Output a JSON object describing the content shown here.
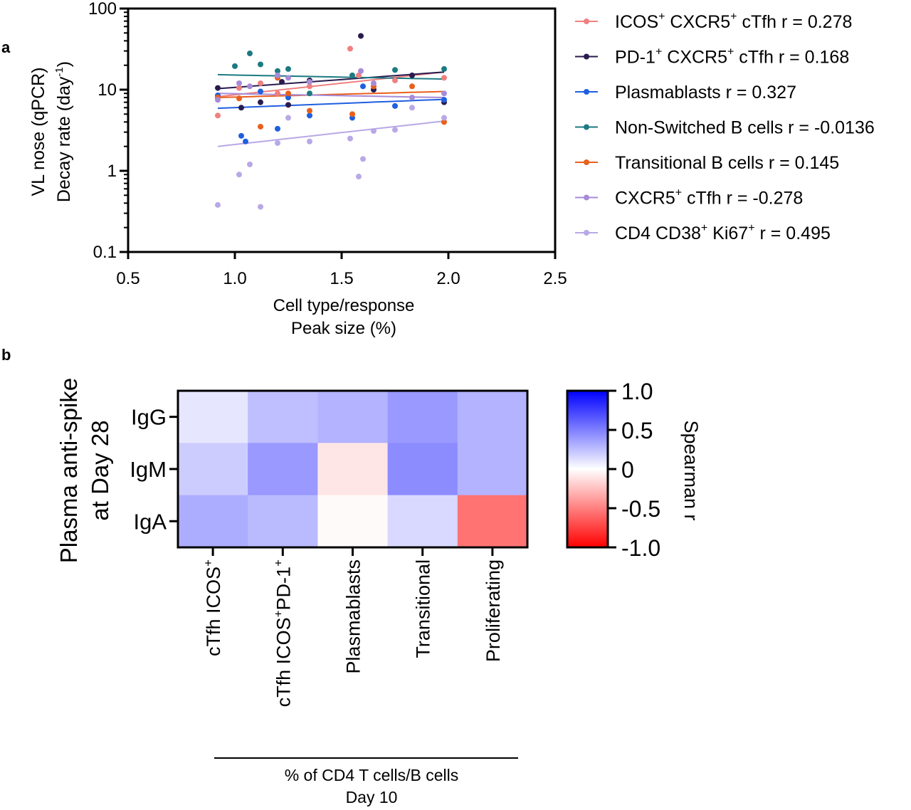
{
  "panel_a": {
    "label": "a",
    "ylabel_line1": "VL nose (qPCR)",
    "ylabel_line2_main": "Decay rate (day",
    "ylabel_line2_sup": "-1",
    "ylabel_line2_end": ")",
    "xlabel_line1": "Cell type/response",
    "xlabel_line2": "Peak size (%)"
  },
  "panel_b": {
    "label": "b",
    "ylabel_line1": "Plasma anti-spike",
    "ylabel_line2": "at Day 28",
    "xlabel_line1": "% of CD4 T cells/B cells",
    "xlabel_line2": "Day 10",
    "colorbar_label": "Spearman r",
    "colorbar_ticks": [
      "1.0",
      "0.5",
      "0",
      "-0.5",
      "-1.0"
    ],
    "col_labels": [
      {
        "main": "cTfh ICOS",
        "sup1": "+",
        "mid": "",
        "sup2": ""
      },
      {
        "main": "cTfh ICOS",
        "sup1": "+",
        "mid": "PD-1",
        "sup2": "+"
      },
      {
        "main": "Plasmablasts",
        "sup1": "",
        "mid": "",
        "sup2": ""
      },
      {
        "main": "Transitional",
        "sup1": "",
        "mid": "",
        "sup2": ""
      },
      {
        "main": "Proliferating",
        "sup1": "",
        "mid": "",
        "sup2": ""
      }
    ]
  },
  "legend": [
    {
      "parts": [
        "ICOS",
        "+",
        " CXCR5",
        "+",
        " cTfh r = 0.278"
      ]
    },
    {
      "parts": [
        "PD-1",
        "+",
        " CXCR5",
        "+",
        " cTfh r = 0.168"
      ]
    },
    {
      "parts": [
        "Plasmablasts r = 0.327"
      ]
    },
    {
      "parts": [
        "Non-Switched B cells r = -0.0136"
      ]
    },
    {
      "parts": [
        "Transitional B cells r = 0.145"
      ]
    },
    {
      "parts": [
        "CXCR5",
        "+",
        " cTfh r = -0.278"
      ]
    },
    {
      "parts": [
        "CD4 CD38",
        "+",
        " Ki67",
        "+",
        " r = 0.495"
      ]
    }
  ],
  "chart_data": [
    {
      "type": "scatter",
      "xlabel": "Cell type/response Peak size (%)",
      "ylabel": "VL nose (qPCR) Decay rate (day-1)",
      "xlim": [
        0.5,
        2.5
      ],
      "ylim": [
        0.1,
        100
      ],
      "y_scale": "log",
      "x_ticks": [
        "0.5",
        "1.0",
        "1.5",
        "2.0",
        "2.5"
      ],
      "y_ticks": [
        "0.1",
        "1",
        "10",
        "100"
      ],
      "legend_position": "right",
      "grid": false,
      "series": [
        {
          "name": "ICOS+ CXCR5+ cTfh r = 0.278",
          "color": "#f08080",
          "points": [
            [
              0.92,
              4.8
            ],
            [
              1.02,
              10.5
            ],
            [
              1.12,
              12
            ],
            [
              1.2,
              9
            ],
            [
              1.35,
              11
            ],
            [
              1.54,
              32
            ],
            [
              1.58,
              15
            ],
            [
              1.75,
              13
            ],
            [
              1.98,
              14
            ]
          ],
          "fit": [
            [
              0.92,
              8.2
            ],
            [
              1.98,
              16.5
            ]
          ]
        },
        {
          "name": "PD-1+ CXCR5+ cTfh r = 0.168",
          "color": "#2a1b4e",
          "points": [
            [
              0.92,
              10.5
            ],
            [
              1.03,
              6
            ],
            [
              1.12,
              7
            ],
            [
              1.22,
              12.5
            ],
            [
              1.25,
              6.5
            ],
            [
              1.35,
              13
            ],
            [
              1.59,
              46
            ],
            [
              1.65,
              10
            ],
            [
              1.83,
              15
            ],
            [
              1.98,
              7
            ]
          ],
          "fit": [
            [
              0.92,
              10.3
            ],
            [
              1.98,
              16.5
            ]
          ]
        },
        {
          "name": "Plasmablasts r = 0.327",
          "color": "#1f5fe0",
          "points": [
            [
              0.92,
              8.5
            ],
            [
              1.03,
              2.7
            ],
            [
              1.05,
              2.3
            ],
            [
              1.12,
              9.5
            ],
            [
              1.2,
              3.3
            ],
            [
              1.25,
              8
            ],
            [
              1.35,
              4.8
            ],
            [
              1.55,
              4.5
            ],
            [
              1.6,
              11
            ],
            [
              1.75,
              6.3
            ],
            [
              1.98,
              7.5
            ]
          ],
          "fit": [
            [
              0.92,
              5.9
            ],
            [
              1.98,
              7.6
            ]
          ]
        },
        {
          "name": "Non-Switched B cells r = -0.0136",
          "color": "#1c7a80",
          "points": [
            [
              0.92,
              8
            ],
            [
              1.0,
              19.5
            ],
            [
              1.07,
              28
            ],
            [
              1.12,
              20.5
            ],
            [
              1.2,
              17
            ],
            [
              1.25,
              18
            ],
            [
              1.35,
              9
            ],
            [
              1.55,
              15
            ],
            [
              1.75,
              17.5
            ],
            [
              1.98,
              18
            ]
          ],
          "fit": [
            [
              0.92,
              15.3
            ],
            [
              1.98,
              13.5
            ]
          ]
        },
        {
          "name": "Transitional B cells r = 0.145",
          "color": "#e8601c",
          "points": [
            [
              0.92,
              8
            ],
            [
              1.02,
              7.8
            ],
            [
              1.12,
              3.5
            ],
            [
              1.2,
              14
            ],
            [
              1.25,
              9
            ],
            [
              1.35,
              5.5
            ],
            [
              1.55,
              5
            ],
            [
              1.65,
              11
            ],
            [
              1.83,
              11
            ],
            [
              1.98,
              4
            ]
          ],
          "fit": [
            [
              0.92,
              8
            ],
            [
              1.98,
              9.5
            ]
          ]
        },
        {
          "name": "CXCR5+ cTfh r = -0.278",
          "color": "#a78bd8",
          "points": [
            [
              0.92,
              7.5
            ],
            [
              1.02,
              12
            ],
            [
              1.07,
              11
            ],
            [
              1.2,
              15
            ],
            [
              1.25,
              14
            ],
            [
              1.35,
              12.5
            ],
            [
              1.59,
              17
            ],
            [
              1.65,
              12
            ],
            [
              1.83,
              8
            ],
            [
              1.98,
              9
            ]
          ],
          "fit": [
            [
              0.92,
              9
            ],
            [
              1.98,
              8
            ]
          ]
        },
        {
          "name": "CD4 CD38+ Ki67+ r = 0.495",
          "color": "#b9a8e6",
          "points": [
            [
              0.92,
              0.38
            ],
            [
              1.02,
              0.9
            ],
            [
              1.07,
              1.2
            ],
            [
              1.12,
              0.36
            ],
            [
              1.2,
              2.2
            ],
            [
              1.25,
              4.5
            ],
            [
              1.35,
              2.3
            ],
            [
              1.54,
              2.5
            ],
            [
              1.58,
              0.85
            ],
            [
              1.6,
              1.4
            ],
            [
              1.65,
              3.1
            ],
            [
              1.75,
              3.2
            ],
            [
              1.83,
              6
            ],
            [
              1.98,
              4.5
            ]
          ],
          "fit": [
            [
              0.92,
              2.0
            ],
            [
              1.98,
              4.1
            ]
          ]
        }
      ]
    },
    {
      "type": "heatmap",
      "ylabel": "Plasma anti-spike at Day 28",
      "xlabel": "% of CD4 T cells/B cells Day 10",
      "rows": [
        "IgG",
        "IgM",
        "IgA"
      ],
      "columns": [
        "cTfh ICOS+",
        "cTfh ICOS+PD-1+",
        "Plasmablasts",
        "Transitional",
        "Proliferating"
      ],
      "values": [
        [
          0.1,
          0.25,
          0.3,
          0.4,
          0.3
        ],
        [
          0.2,
          0.4,
          -0.1,
          0.45,
          0.3
        ],
        [
          0.32,
          0.27,
          -0.02,
          0.15,
          -0.55
        ]
      ],
      "colorbar": {
        "label": "Spearman r",
        "range": [
          -1,
          1
        ],
        "low_color": "#ff0000",
        "mid_color": "#ffffff",
        "high_color": "#0000ff"
      }
    }
  ]
}
